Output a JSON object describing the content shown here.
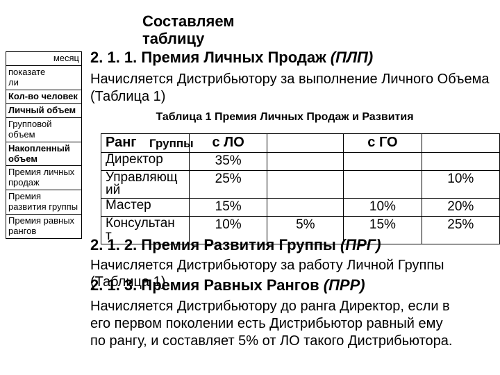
{
  "title_line1": "Составляем",
  "title_line2": "таблицу",
  "h211": "2. 1. 1. Премия Личных Продаж ",
  "h211_ital": "(ПЛП)",
  "desc211_l1": "Начисляется Дистрибьютору за выполнение Личного Объема",
  "desc211_l2": "(Таблица 1)",
  "table_caption": "Таблица 1 Премия Личных Продаж и Развития",
  "grp_word": "Группы",
  "main_table": {
    "headers": [
      "Ранг",
      "с ЛО",
      "",
      "с ГО",
      ""
    ],
    "rows": [
      {
        "rank": "Директор",
        "c1": "35%",
        "c2": "",
        "c3": "",
        "c4": ""
      },
      {
        "rank": "Управляющ<br>ий",
        "c1": "25%",
        "c2": "",
        "c3": "",
        "c4": "10%"
      },
      {
        "rank": "Мастер",
        "c1": "15%",
        "c2": "",
        "c3": "10%",
        "c4": "20%"
      },
      {
        "rank": "Консультан<br>т",
        "c1": "10%",
        "c2": "5%",
        "c3": "15%",
        "c4": "25%"
      }
    ]
  },
  "h212": "2. 1. 2. Премия Развития Группы ",
  "h212_ital": "(ПРГ)",
  "desc212_l1": "Начисляется Дистрибьютору за работу Личной Группы",
  "desc212_l2": "(Таблица 1)",
  "h213": "2. 1. 3. Премия Равных Рангов ",
  "h213_ital": "(ПРР)",
  "desc213_l1": "Начисляется Дистрибьютору до ранга Директор, если в",
  "desc213_l2": "его первом поколении есть Дистрибьютор равный ему",
  "desc213_l3": "по рангу, и составляет 5% от ЛО такого Дистрибьютора.",
  "side_rows": [
    {
      "txt": "месяц",
      "cls": "rt"
    },
    {
      "txt": "показате<br>ли",
      "cls": ""
    },
    {
      "txt": "Кол-во человек",
      "cls": "bld"
    },
    {
      "txt": "Личный объем",
      "cls": "bld"
    },
    {
      "txt": "Групповой объем",
      "cls": ""
    },
    {
      "txt": "Накопленный объем",
      "cls": "bld"
    },
    {
      "txt": "Премия личных продаж",
      "cls": ""
    },
    {
      "txt": "Премия развития группы",
      "cls": ""
    },
    {
      "txt": "Премия равных рангов",
      "cls": ""
    }
  ]
}
